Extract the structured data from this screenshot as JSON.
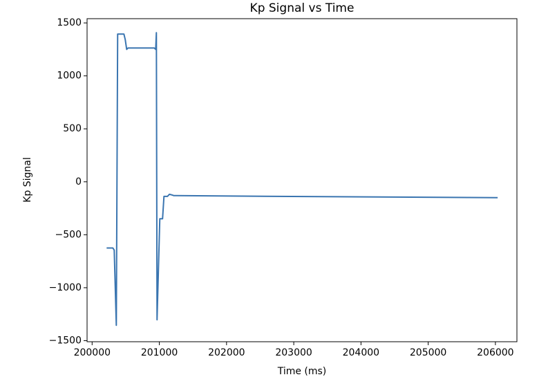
{
  "chart_data": {
    "type": "line",
    "title": "Kp Signal vs Time",
    "xlabel": "Time (ms)",
    "ylabel": "Kp Signal",
    "color": "#3a75b0",
    "x": [
      200216,
      200308,
      200329,
      200360,
      200380,
      200473,
      200493,
      200514,
      200534,
      200925,
      200946,
      200956,
      200966,
      201007,
      201048,
      201069,
      201120,
      201151,
      201192,
      201213,
      202755,
      206033
    ],
    "values": [
      -625,
      -625,
      -645,
      -1355,
      1395,
      1395,
      1342,
      1250,
      1263,
      1263,
      1250,
      1408,
      -1303,
      -349,
      -349,
      -138,
      -138,
      -118,
      -125,
      -130,
      -138,
      -150
    ],
    "xlim": [
      199925,
      206320
    ],
    "ylim": [
      -1510,
      1540
    ],
    "xticks": [
      200000,
      201000,
      202000,
      203000,
      204000,
      205000,
      206000
    ],
    "yticks": [
      {
        "value": -1500,
        "label": "−1500"
      },
      {
        "value": -1000,
        "label": "−1000"
      },
      {
        "value": -500,
        "label": "−500"
      },
      0,
      500,
      1000,
      1500
    ]
  }
}
